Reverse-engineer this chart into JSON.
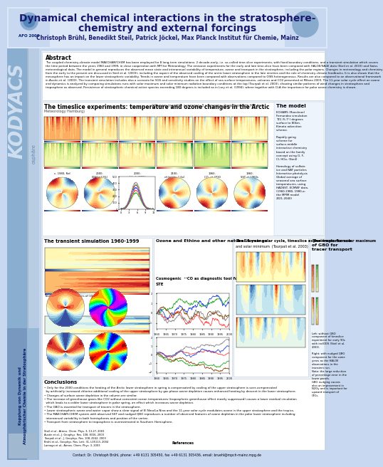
{
  "title_line1": "Dynamical chemical interactions in the stratosphere-",
  "title_line2": "chemistry and external forcings",
  "authors": "Christoph Brühl, Benedikt Steil, Patrick Jöckel, Max Planck Institut für Chemie, Mainz",
  "project_label": "AFO 2000",
  "project_name": "KODYACS",
  "project_subtitle_de": "Kopplung von Dynamik und\nAtmosphärischer Chemie in der Stratosphäre",
  "bg_color": "#c8d8f0",
  "header_bg": "#dce8f8",
  "sidebar_bg_light": "#b8cce4",
  "sidebar_bg_dark": "#8aaed0",
  "content_bg": "#e8f0f8",
  "white": "#ffffff",
  "title_color": "#1a1a6e",
  "text_color": "#000000",
  "section_header_bg": "#d0e0f0",
  "gbo_bg": "#e0ecf8",
  "abstract_title": "Abstract",
  "section1_title": "The timeslice experiments: temperature and ozone changes in the Arctic",
  "section1_sub": "  20 years monthly averages, 8 scenarios, (together with MPI for",
  "section1_sub2": "Meteorology Hamburg)",
  "model_title": "The model",
  "transient_title": "The transient simulation 1960-1999",
  "solar_title": "The 11 year solar cycle, timeslice experiments for solar maximum",
  "solar_sub": "and solar minimum  (Tourpali et al. 2003)",
  "ozone_title": "Ozone and Ethino and other natural forcings",
  "cosmo_title": "Cosmogenic  ¹⁴CO as diagnostic tool for",
  "cosmo_sub": "STE",
  "gbo_title": "The importance\nof GBO for\ntracer transport",
  "conclusions_title": "Conclusions",
  "contact": "Contact: Dr. Christoph Brühl, phone: +49 6131 305450, fax +49 6131 305436, email: bruehl@mpch-mainz.mpg.de",
  "timeslice_labels": [
    "c, 1980, Ref.",
    "2000, (GHG+12%)",
    "2000, chlor(+12%)",
    "2100, chlor(dry 1.6x)",
    "1960, CO₂ at 2030",
    "1960, SST at 1960s"
  ]
}
